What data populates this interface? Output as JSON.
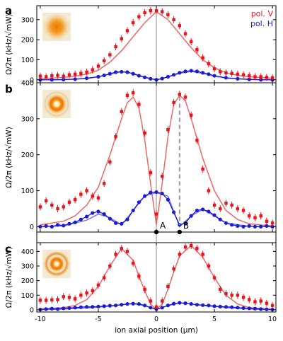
{
  "legend": [
    {
      "label": "pol. V",
      "color": "#e8141b"
    },
    {
      "label": "pol. H",
      "color": "#1b1bd6"
    }
  ],
  "colors": {
    "fit_v": "#ee6666",
    "fit_h": "#7777ee",
    "marker_line": "#999999"
  },
  "xlabel": "ion axial position (μm)",
  "markers": [
    {
      "label": "A",
      "x": 0
    },
    {
      "label": "B",
      "x": 2
    }
  ],
  "chart_data": [
    {
      "type": "scatter",
      "panel": "a",
      "ylabel": "Ω/2π (kHz/√mW)",
      "xlim": [
        -10.3,
        10.3
      ],
      "ylim": [
        -15,
        370
      ],
      "xticks": [
        -10,
        -5,
        0,
        5,
        10
      ],
      "yticks": [
        0,
        100,
        200,
        300
      ],
      "vline_x": 0,
      "inset": "single-spot",
      "series": [
        {
          "name": "pol. V",
          "color": "#e8141b",
          "x": [
            -10,
            -9.5,
            -9,
            -8.5,
            -8,
            -7.5,
            -7,
            -6.5,
            -6,
            -5.5,
            -5,
            -4.5,
            -4,
            -3.5,
            -3,
            -2.5,
            -2,
            -1.5,
            -1,
            -0.5,
            0,
            0.5,
            1,
            1.5,
            2,
            2.5,
            3,
            3.5,
            4,
            4.5,
            5,
            5.5,
            6,
            6.5,
            7,
            7.5,
            8,
            8.5,
            9,
            9.5,
            10
          ],
          "y": [
            18,
            15,
            20,
            22,
            18,
            25,
            28,
            32,
            38,
            50,
            68,
            95,
            125,
            165,
            205,
            245,
            285,
            315,
            335,
            345,
            345,
            340,
            325,
            300,
            270,
            230,
            190,
            150,
            110,
            80,
            55,
            40,
            35,
            32,
            28,
            25,
            20,
            15,
            15,
            12,
            10
          ]
        },
        {
          "name": "pol. H",
          "color": "#1b1bd6",
          "x": [
            -10,
            -9,
            -8,
            -7,
            -6,
            -5,
            -4.5,
            -4,
            -3.5,
            -3,
            -2.5,
            -2,
            -1.5,
            -1,
            -0.5,
            0,
            0.5,
            1,
            1.5,
            2,
            2.5,
            3,
            3.5,
            4,
            4.5,
            5,
            6,
            7,
            8,
            9,
            10
          ],
          "y": [
            0,
            0,
            1,
            3,
            8,
            15,
            22,
            30,
            38,
            40,
            38,
            30,
            20,
            12,
            5,
            0,
            6,
            15,
            25,
            35,
            42,
            45,
            42,
            35,
            28,
            20,
            10,
            5,
            2,
            0,
            0
          ]
        }
      ],
      "fits": [
        {
          "series": "pol. V",
          "x": [
            -10,
            -8,
            -7,
            -6,
            -5,
            -4,
            -3,
            -2,
            -1,
            0,
            1,
            2,
            3,
            4,
            5,
            6,
            7,
            8,
            10
          ],
          "y": [
            5,
            12,
            18,
            28,
            48,
            88,
            145,
            215,
            285,
            340,
            300,
            230,
            160,
            100,
            60,
            35,
            22,
            15,
            8
          ]
        },
        {
          "series": "pol. H",
          "x": [
            -10,
            -8,
            -6,
            -5,
            -4,
            -3,
            -2,
            -1,
            0,
            1,
            2,
            3,
            4,
            5,
            6,
            8,
            10
          ],
          "y": [
            0,
            1,
            6,
            15,
            28,
            40,
            32,
            14,
            0,
            14,
            32,
            42,
            32,
            18,
            8,
            2,
            0
          ]
        }
      ]
    },
    {
      "type": "scatter",
      "panel": "b",
      "ylabel": "Ω/2π (kHz/√mW)",
      "xlim": [
        -10.3,
        10.3
      ],
      "ylim": [
        -15,
        400
      ],
      "xticks": [
        -10,
        -5,
        0,
        5,
        10
      ],
      "yticks": [
        0,
        100,
        200,
        300,
        400
      ],
      "vline_x": 0,
      "dashed_x": 2,
      "inset": "ring",
      "series": [
        {
          "name": "pol. V",
          "color": "#e8141b",
          "x": [
            -10,
            -9.5,
            -9,
            -8.5,
            -8,
            -7.5,
            -7,
            -6.5,
            -6,
            -5.5,
            -5,
            -4.5,
            -4,
            -3.5,
            -3,
            -2.5,
            -2,
            -1.5,
            -1,
            -0.5,
            0,
            0.5,
            1,
            1.5,
            2,
            2.5,
            3,
            3.5,
            4,
            4.5,
            5,
            5.5,
            6,
            6.5,
            7,
            7.5,
            8,
            8.5,
            9,
            9.5,
            10
          ],
          "y": [
            55,
            72,
            60,
            50,
            55,
            68,
            75,
            90,
            100,
            85,
            80,
            120,
            180,
            250,
            320,
            365,
            372,
            340,
            260,
            150,
            35,
            140,
            270,
            345,
            368,
            360,
            310,
            240,
            160,
            100,
            60,
            50,
            65,
            60,
            50,
            45,
            30,
            25,
            30,
            15,
            10
          ]
        },
        {
          "name": "pol. H",
          "color": "#1b1bd6",
          "x": [
            -10,
            -9.5,
            -9,
            -8.5,
            -8,
            -7.5,
            -7,
            -6.5,
            -6,
            -5.5,
            -5,
            -4.5,
            -4,
            -3.5,
            -3,
            -2.5,
            -2,
            -1.5,
            -1,
            -0.5,
            0,
            0.5,
            1,
            1.5,
            2,
            2.5,
            3,
            3.5,
            4,
            4.5,
            5,
            5.5,
            6,
            6.5,
            7,
            7.5,
            8,
            8.5,
            9,
            9.5,
            10
          ],
          "y": [
            0,
            2,
            0,
            5,
            3,
            8,
            12,
            20,
            28,
            38,
            42,
            35,
            22,
            10,
            8,
            20,
            45,
            68,
            85,
            95,
            96,
            92,
            75,
            40,
            5,
            10,
            30,
            45,
            48,
            42,
            32,
            20,
            10,
            5,
            2,
            0,
            2,
            0,
            0,
            2,
            0
          ]
        }
      ],
      "fits": [
        {
          "series": "pol. V",
          "x": [
            -10,
            -8,
            -7,
            -6,
            -5,
            -4,
            -3,
            -2.5,
            -2,
            -1.5,
            -1,
            -0.5,
            0,
            0.5,
            1,
            1.5,
            2,
            2.5,
            3,
            4,
            5,
            6,
            7,
            8,
            10
          ],
          "y": [
            5,
            15,
            30,
            60,
            110,
            200,
            300,
            345,
            360,
            330,
            240,
            120,
            5,
            120,
            250,
            340,
            365,
            350,
            300,
            190,
            100,
            45,
            20,
            8,
            2
          ]
        },
        {
          "series": "pol. H",
          "x": [
            -10,
            -8,
            -6,
            -5,
            -4,
            -3,
            -2,
            -1,
            0,
            1,
            2,
            3,
            4,
            5,
            6,
            8,
            10
          ],
          "y": [
            0,
            2,
            18,
            35,
            25,
            5,
            45,
            85,
            95,
            85,
            0,
            30,
            48,
            30,
            10,
            1,
            0
          ]
        }
      ]
    },
    {
      "type": "scatter",
      "panel": "c",
      "ylabel": "Ω/2π (kHz/√mW)",
      "xlim": [
        -10.3,
        10.3
      ],
      "ylim": [
        -15,
        460
      ],
      "xticks": [
        -10,
        -5,
        0,
        5,
        10
      ],
      "yticks": [
        0,
        100,
        200,
        300,
        400
      ],
      "vline_x": 0,
      "inset": "double-ring",
      "series": [
        {
          "name": "pol. V",
          "color": "#e8141b",
          "x": [
            -10,
            -9.5,
            -9,
            -8.5,
            -8,
            -7.5,
            -7,
            -6.5,
            -6,
            -5.5,
            -5,
            -4.5,
            -4,
            -3.5,
            -3,
            -2.5,
            -2,
            -1.5,
            -1,
            -0.5,
            0,
            0.5,
            1,
            1.5,
            2,
            2.5,
            3,
            3.5,
            4,
            4.5,
            5,
            5.5,
            6,
            6.5,
            7,
            7.5,
            8,
            8.5,
            9,
            9.5,
            10
          ],
          "y": [
            65,
            65,
            68,
            70,
            90,
            85,
            75,
            100,
            115,
            130,
            170,
            220,
            300,
            380,
            420,
            400,
            320,
            230,
            140,
            60,
            20,
            60,
            160,
            280,
            380,
            430,
            440,
            420,
            380,
            300,
            220,
            140,
            110,
            100,
            100,
            85,
            70,
            55,
            60,
            45,
            30
          ]
        },
        {
          "name": "pol. H",
          "color": "#1b1bd6",
          "x": [
            -10,
            -9.5,
            -9,
            -8.5,
            -8,
            -7.5,
            -7,
            -6.5,
            -6,
            -5.5,
            -5,
            -4.5,
            -4,
            -3.5,
            -3,
            -2.5,
            -2,
            -1.5,
            -1,
            -0.5,
            0,
            0.5,
            1,
            1.5,
            2,
            2.5,
            3,
            3.5,
            4,
            4.5,
            5,
            5.5,
            6,
            6.5,
            7,
            7.5,
            8,
            8.5,
            9,
            9.5,
            10
          ],
          "y": [
            2,
            5,
            8,
            5,
            10,
            12,
            15,
            18,
            20,
            20,
            22,
            25,
            28,
            30,
            35,
            40,
            42,
            40,
            30,
            15,
            5,
            15,
            30,
            42,
            48,
            45,
            40,
            35,
            32,
            30,
            25,
            22,
            20,
            18,
            15,
            12,
            10,
            8,
            5,
            3,
            2
          ]
        }
      ],
      "fits": [
        {
          "series": "pol. V",
          "x": [
            -10,
            -8,
            -7,
            -6,
            -5,
            -4,
            -3,
            -2,
            -1.5,
            -1,
            -0.5,
            0,
            0.5,
            1,
            1.5,
            2,
            3,
            4,
            5,
            6,
            7,
            8,
            10
          ],
          "y": [
            5,
            15,
            30,
            70,
            160,
            300,
            420,
            340,
            230,
            130,
            40,
            0,
            40,
            140,
            260,
            370,
            440,
            360,
            220,
            100,
            40,
            15,
            3
          ]
        },
        {
          "series": "pol. H",
          "x": [
            -10,
            -8,
            -6,
            -4,
            -3,
            -2,
            -1,
            0,
            1,
            2,
            3,
            4,
            6,
            8,
            10
          ],
          "y": [
            0,
            5,
            12,
            25,
            35,
            42,
            28,
            3,
            28,
            48,
            40,
            30,
            15,
            5,
            0
          ]
        }
      ]
    }
  ]
}
